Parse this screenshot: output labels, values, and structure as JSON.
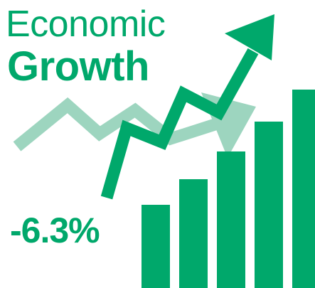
{
  "title": {
    "line1": "Economic",
    "line2": "Growth"
  },
  "growth_value": "-6.3%",
  "illustration": {
    "bar_levels": [
      0.39,
      0.51,
      0.64,
      0.78,
      0.93
    ],
    "icons": [
      "bar-chart-icon",
      "rising-arrow-icon",
      "faded-trend-arrow-icon"
    ]
  },
  "colors": {
    "primary": "#00a86b",
    "faded": "#9dd5bf",
    "background": "#ffffff"
  }
}
